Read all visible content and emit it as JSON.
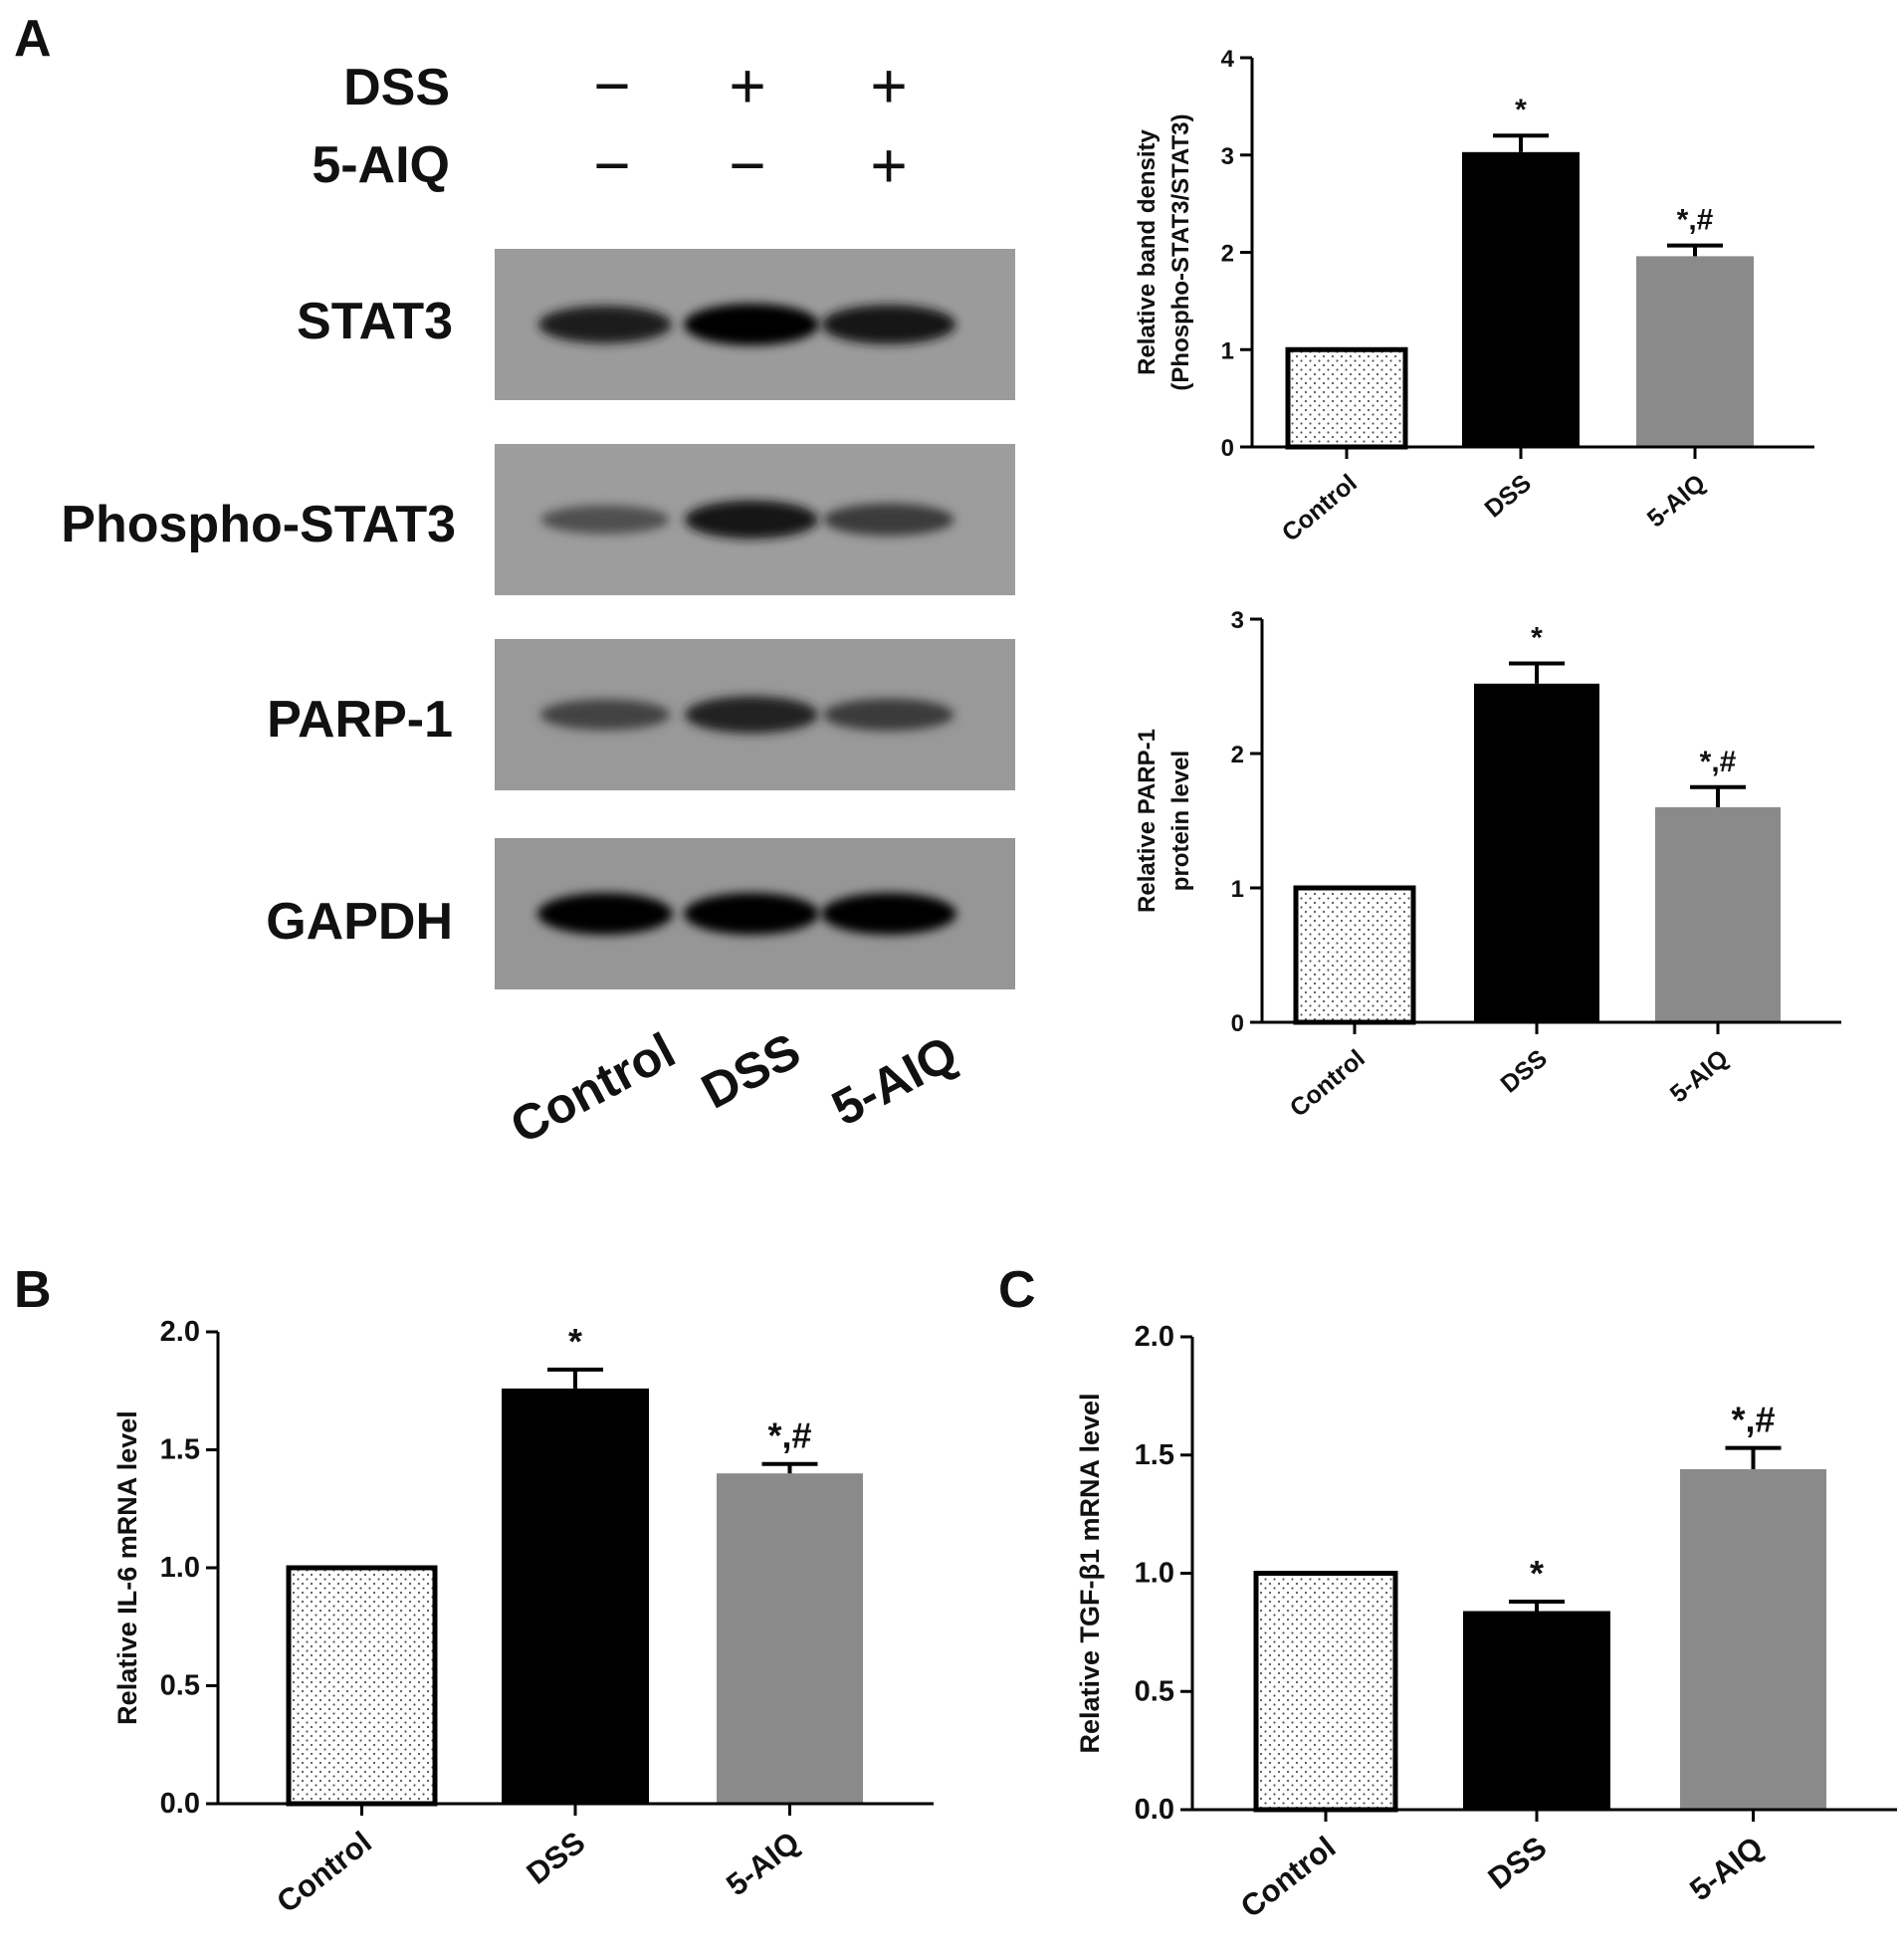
{
  "panel_labels": [
    "A",
    "B",
    "C"
  ],
  "western_blot": {
    "treatments": [
      {
        "name": "DSS",
        "signs": [
          "−",
          "+",
          "+"
        ]
      },
      {
        "name": "5-AIQ",
        "signs": [
          "−",
          "−",
          "+"
        ]
      }
    ],
    "bands": [
      {
        "name": "STAT3",
        "intensity": [
          0.82,
          1.0,
          0.9
        ]
      },
      {
        "name": "Phospho-STAT3",
        "intensity": [
          0.45,
          0.85,
          0.6
        ]
      },
      {
        "name": "PARP-1",
        "intensity": [
          0.55,
          0.8,
          0.6
        ]
      },
      {
        "name": "GAPDH",
        "intensity": [
          1.0,
          1.0,
          1.0
        ]
      }
    ],
    "lanes": [
      "Control",
      "DSS",
      "5-AIQ"
    ]
  },
  "chart_data": [
    {
      "id": "pstat3",
      "type": "bar",
      "categories": [
        "Control",
        "DSS",
        "5-AIQ"
      ],
      "values": [
        1.0,
        3.03,
        1.96
      ],
      "errors": [
        0,
        0.17,
        0.11
      ],
      "annotations": [
        "",
        "*",
        "*,#"
      ],
      "ylabel": [
        "Relative band density",
        "(Phospho-STAT3/STAT3)"
      ],
      "ylim": [
        0,
        4
      ],
      "yticks": [
        "0",
        "1",
        "2",
        "3",
        "4"
      ],
      "grid": false
    },
    {
      "id": "parp1",
      "type": "bar",
      "categories": [
        "Control",
        "DSS",
        "5-AIQ"
      ],
      "values": [
        1.0,
        2.52,
        1.6
      ],
      "errors": [
        0,
        0.15,
        0.15
      ],
      "annotations": [
        "",
        "*",
        "*,#"
      ],
      "ylabel": [
        "Relative PARP-1",
        "protein level"
      ],
      "ylim": [
        0,
        3
      ],
      "yticks": [
        "0",
        "1",
        "2",
        "3"
      ],
      "grid": false
    },
    {
      "id": "il6",
      "type": "bar",
      "categories": [
        "Control",
        "DSS",
        "5-AIQ"
      ],
      "values": [
        1.0,
        1.76,
        1.4
      ],
      "errors": [
        0,
        0.08,
        0.04
      ],
      "annotations": [
        "",
        "*",
        "*,#"
      ],
      "ylabel": [
        "Relative IL-6 mRNA level"
      ],
      "ylim": [
        0,
        2
      ],
      "yticks": [
        "0.0",
        "0.5",
        "1.0",
        "1.5",
        "2.0"
      ],
      "grid": false
    },
    {
      "id": "tgfb1",
      "type": "bar",
      "categories": [
        "Control",
        "DSS",
        "5-AIQ"
      ],
      "values": [
        1.0,
        0.84,
        1.44
      ],
      "errors": [
        0,
        0.04,
        0.09
      ],
      "annotations": [
        "",
        "*",
        "*,#"
      ],
      "ylabel": [
        "Relative TGF-β1 mRNA level"
      ],
      "ylim": [
        0,
        2
      ],
      "yticks": [
        "0.0",
        "0.5",
        "1.0",
        "1.5",
        "2.0"
      ],
      "grid": false
    }
  ],
  "bar_fills": [
    "dotted-white",
    "#000000",
    "#8a8a8a"
  ]
}
